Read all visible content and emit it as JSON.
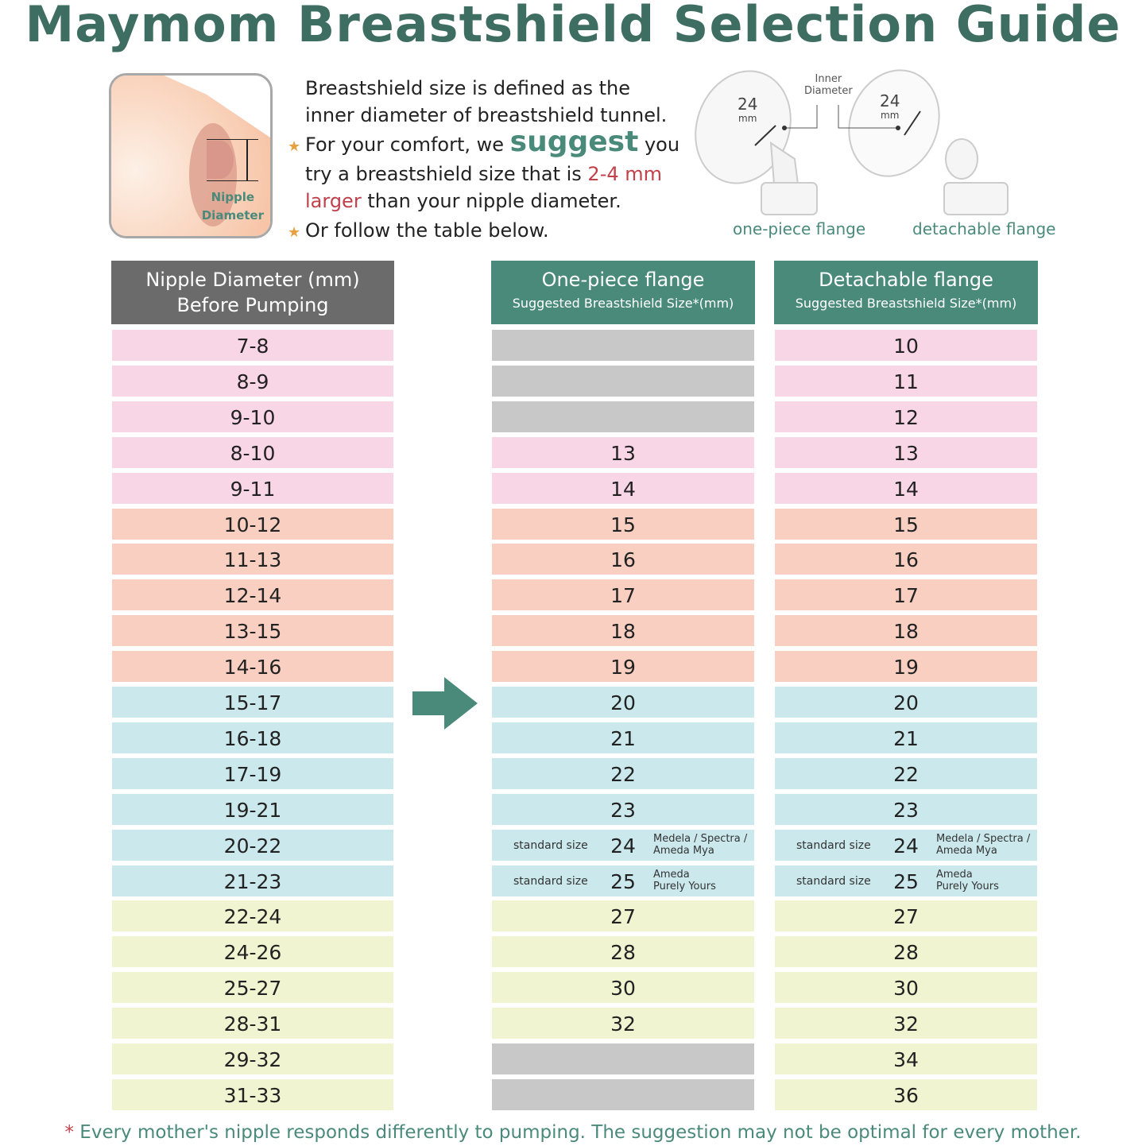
{
  "title": "Maymom Breastshield Selection Guide",
  "diagram": {
    "label_line1": "Nipple",
    "label_line2": "Diameter"
  },
  "intro": {
    "line1": "Breastshield size is defined as the",
    "line2": "inner diameter of breastshield tunnel.",
    "line3a": "For your comfort, we ",
    "line3b": "suggest",
    "line3c": " you",
    "line4a": "try a breastshield size that is ",
    "line4b": "2-4 mm",
    "line5a": "larger",
    "line5b": " than your nipple diameter.",
    "line6": "Or follow the table below."
  },
  "flanges": {
    "inner_l1": "Inner",
    "inner_l2": "Diameter",
    "size": "24",
    "unit": "mm",
    "one_piece": "one-piece flange",
    "detachable": "detachable flange"
  },
  "headers": {
    "nipple_l1": "Nipple Diameter (mm)",
    "nipple_l2": "Before Pumping",
    "one_piece": "One-piece flange",
    "detachable": "Detachable flange",
    "sub": "Suggested Breastshield Size*(mm)"
  },
  "colors": {
    "pink": "#f9d6e6",
    "salmon": "#f8cfc1",
    "blue": "#cbe9ec",
    "yellow": "#f1f4d0",
    "gray": "#c8c8c8",
    "green": "#4a8a7a"
  },
  "rows": [
    {
      "nipple": "7-8",
      "one": "",
      "det": "10",
      "c": "pink"
    },
    {
      "nipple": "8-9",
      "one": "",
      "det": "11",
      "c": "pink"
    },
    {
      "nipple": "9-10",
      "one": "",
      "det": "12",
      "c": "pink"
    },
    {
      "nipple": "8-10",
      "one": "13",
      "det": "13",
      "c": "pink"
    },
    {
      "nipple": "9-11",
      "one": "14",
      "det": "14",
      "c": "pink"
    },
    {
      "nipple": "10-12",
      "one": "15",
      "det": "15",
      "c": "salmon"
    },
    {
      "nipple": "11-13",
      "one": "16",
      "det": "16",
      "c": "salmon"
    },
    {
      "nipple": "12-14",
      "one": "17",
      "det": "17",
      "c": "salmon"
    },
    {
      "nipple": "13-15",
      "one": "18",
      "det": "18",
      "c": "salmon"
    },
    {
      "nipple": "14-16",
      "one": "19",
      "det": "19",
      "c": "salmon"
    },
    {
      "nipple": "15-17",
      "one": "20",
      "det": "20",
      "c": "blue"
    },
    {
      "nipple": "16-18",
      "one": "21",
      "det": "21",
      "c": "blue"
    },
    {
      "nipple": "17-19",
      "one": "22",
      "det": "22",
      "c": "blue"
    },
    {
      "nipple": "19-21",
      "one": "23",
      "det": "23",
      "c": "blue"
    },
    {
      "nipple": "20-22",
      "one": "24",
      "det": "24",
      "c": "blue",
      "std": "standard size",
      "brand1": "Medela / Spectra /",
      "brand2": "Ameda Mya"
    },
    {
      "nipple": "21-23",
      "one": "25",
      "det": "25",
      "c": "blue",
      "std": "standard size",
      "brand1": "Ameda",
      "brand2": "Purely Yours"
    },
    {
      "nipple": "22-24",
      "one": "27",
      "det": "27",
      "c": "yellow"
    },
    {
      "nipple": "24-26",
      "one": "28",
      "det": "28",
      "c": "yellow"
    },
    {
      "nipple": "25-27",
      "one": "30",
      "det": "30",
      "c": "yellow"
    },
    {
      "nipple": "28-31",
      "one": "32",
      "det": "32",
      "c": "yellow"
    },
    {
      "nipple": "29-32",
      "one": "",
      "det": "34",
      "c": "yellow"
    },
    {
      "nipple": "31-33",
      "one": "",
      "det": "36",
      "c": "yellow"
    }
  ],
  "footnote": {
    "asterisk": "*",
    "text": " Every mother's nipple responds differently to pumping. The suggestion may not be optimal for every mother."
  }
}
